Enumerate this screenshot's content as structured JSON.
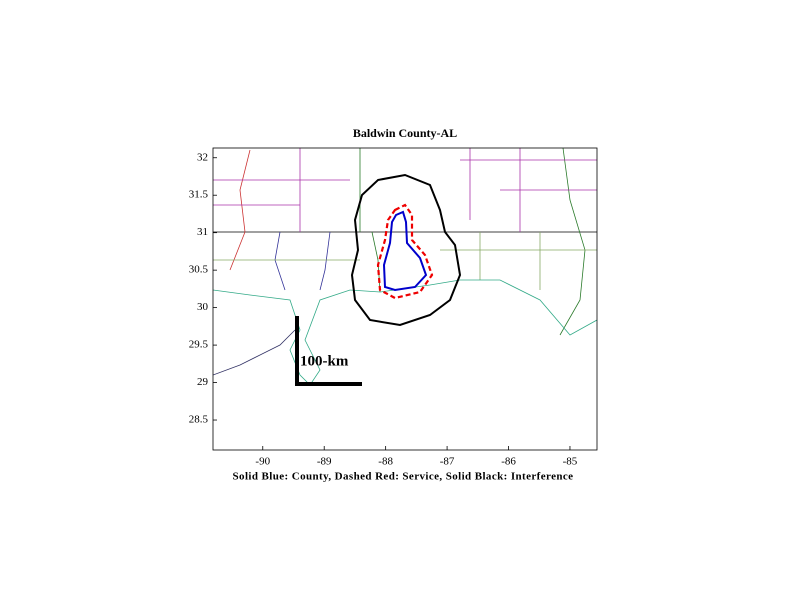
{
  "chart_data": {
    "type": "map",
    "title": "Baldwin County-AL",
    "xlabel": "Solid Blue: County, Dashed Red: Service, Solid Black: Interference",
    "annotation": "100-km",
    "xlim": [
      -90.81,
      -84.56
    ],
    "ylim": [
      28.1,
      32.13
    ],
    "xticks": [
      -90,
      -89,
      -88,
      -87,
      -86,
      -85
    ],
    "yticks": [
      28.5,
      29,
      29.5,
      30,
      30.5,
      31,
      31.5,
      32
    ]
  }
}
